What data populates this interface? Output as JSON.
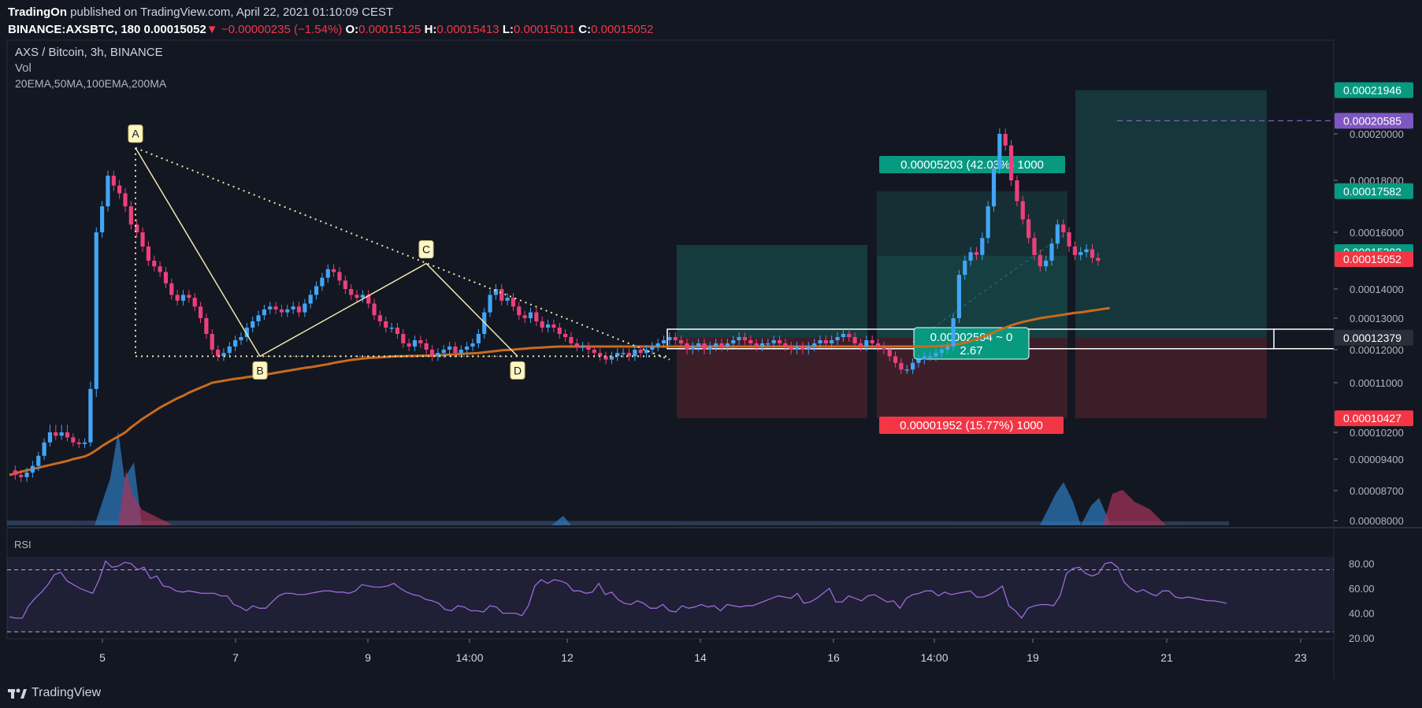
{
  "header": {
    "publisher": "TradingOn",
    "published_text": "published on TradingView.com, April 22, 2021 01:10:09 CEST",
    "symbol_text": "BINANCE:AXSBTC, 180",
    "last_price": "0.00015052",
    "change_text": "−0.00000235 (−1.54%)",
    "o_label": "O:",
    "o_value": "0.00015125",
    "h_label": "H:",
    "h_value": "0.00015413",
    "l_label": "L:",
    "l_value": "0.00015011",
    "c_label": "C:",
    "c_value": "0.00015052",
    "down_arrow": "▼"
  },
  "legend": {
    "title": "AXS / Bitcoin, 3h, BINANCE",
    "vol": "Vol",
    "indicators": "20EMA,50MA,100EMA,200MA"
  },
  "rsi": {
    "label": "RSI",
    "levels": [
      {
        "label": "80.00",
        "value": 80
      },
      {
        "label": "60.00",
        "value": 60
      },
      {
        "label": "40.00",
        "value": 40
      },
      {
        "label": "20.00",
        "value": 20
      }
    ],
    "upper_band": 75,
    "lower_band": 25,
    "ylim": [
      15,
      88
    ],
    "values": [
      37,
      36,
      36,
      46,
      52,
      57,
      63,
      71,
      73,
      66,
      63,
      60,
      58,
      56,
      67,
      82,
      77,
      78,
      81,
      80,
      75,
      77,
      68,
      70,
      62,
      61,
      58,
      57,
      58,
      57,
      56,
      56,
      56,
      54,
      54,
      47,
      45,
      42,
      46,
      44,
      44,
      49,
      54,
      56,
      56,
      55,
      55,
      56,
      57,
      58,
      58,
      57,
      57,
      56,
      58,
      63,
      62,
      61,
      61,
      62,
      64,
      60,
      57,
      55,
      54,
      51,
      50,
      48,
      43,
      42,
      46,
      45,
      42,
      42,
      41,
      46,
      45,
      40,
      40,
      40,
      38,
      46,
      62,
      67,
      64,
      67,
      66,
      64,
      58,
      58,
      56,
      57,
      64,
      55,
      57,
      51,
      48,
      47,
      50,
      48,
      44,
      44,
      47,
      42,
      41,
      46,
      44,
      45,
      47,
      45,
      46,
      42,
      47,
      46,
      45,
      46,
      46,
      48,
      50,
      52,
      54,
      53,
      52,
      56,
      48,
      49,
      52,
      56,
      60,
      49,
      49,
      54,
      52,
      50,
      54,
      55,
      52,
      49,
      50,
      44,
      52,
      55,
      56,
      58,
      58,
      54,
      57,
      55,
      56,
      57,
      58,
      53,
      53,
      55,
      58,
      62,
      46,
      42,
      36,
      44,
      46,
      47,
      47,
      46,
      54,
      72,
      76,
      77,
      72,
      70,
      72,
      80,
      81,
      77,
      65,
      60,
      57,
      59,
      56,
      54,
      58,
      58,
      53,
      52,
      53,
      52,
      51,
      50,
      50,
      49,
      48
    ]
  },
  "axes": {
    "x_ticks": [
      "5",
      "7",
      "9",
      "14:00",
      "12",
      "14",
      "16",
      "14:00",
      "19",
      "21",
      "23"
    ],
    "y_ticks": [
      "0.00020000",
      "0.00018000",
      "0.00016000",
      "0.00014000",
      "0.00013000",
      "0.00012000",
      "0.00011000",
      "0.00010200",
      "0.00009400",
      "0.00008700",
      "0.00008000"
    ],
    "y_tick_values": [
      0.0002,
      0.00018,
      0.00016,
      0.00014,
      0.00013,
      0.00012,
      0.00011,
      0.000102,
      9.4e-05,
      8.7e-05,
      8e-05
    ],
    "price_labels": [
      {
        "text": "0.00021946",
        "value": 0.00021946,
        "color": "#089981"
      },
      {
        "text": "0.00020585",
        "value": 0.00020585,
        "color": "#7e57c2"
      },
      {
        "text": "0.00017582",
        "value": 0.00017582,
        "color": "#089981"
      },
      {
        "text": "0.00015303",
        "value": 0.00015303,
        "color": "#089981"
      },
      {
        "text": "0.00015052",
        "value": 0.00015052,
        "color": "#f23645"
      },
      {
        "text": "0.00012379",
        "value": 0.00012379,
        "color": "#2a2e39"
      },
      {
        "text": "0.00010427",
        "value": 0.00010427,
        "color": "#f23645"
      }
    ]
  },
  "pattern": {
    "points": [
      {
        "label": "A",
        "value": 0.000194
      },
      {
        "label": "B",
        "value": 0.000118
      },
      {
        "label": "C",
        "value": 0.000149
      },
      {
        "label": "D",
        "value": 0.000118
      }
    ]
  },
  "positions": {
    "profit_label": "0.00005203 (42.03%) 1000",
    "loss_label": "0.00001952 (15.77%) 1000",
    "measure_label_1": "0.00002594 ~ 0",
    "measure_label_2": "2.67",
    "entry": 0.00012379,
    "stop": 0.00010427,
    "target_1": 0.00017582,
    "target_2": 0.00021946,
    "high_marker": 0.00020585
  },
  "chart_data": {
    "type": "candlestick",
    "title": "AXS / Bitcoin, 3h, BINANCE",
    "ylim": [
      8e-05,
      0.00022
    ],
    "ma_100ema": [
      9.05e-05,
      9.08e-05,
      9.12e-05,
      9.15e-05,
      9.18e-05,
      9.21e-05,
      9.24e-05,
      9.27e-05,
      9.3e-05,
      9.33e-05,
      9.36e-05,
      9.4e-05,
      9.44e-05,
      9.48e-05,
      9.56e-05,
      9.67e-05,
      9.79e-05,
      9.9e-05,
      0.0001,
      0.000101,
      0.000102,
      0.0001028,
      0.0001035,
      0.0001042,
      0.0001048,
      0.0001054,
      0.000106,
      0.0001065,
      0.000107,
      0.0001075,
      0.0001079,
      0.0001084,
      0.0001088,
      0.0001092,
      0.0001096,
      0.00011,
      0.0001103,
      0.0001106,
      0.0001109,
      0.0001112,
      0.0001114,
      0.0001117,
      0.0001119,
      0.0001122,
      0.0001124,
      0.0001127,
      0.000113,
      0.0001133,
      0.0001136,
      0.0001139,
      0.0001142,
      0.0001145,
      0.0001147,
      0.000115,
      0.0001153,
      0.0001156,
      0.000116,
      0.0001163,
      0.0001166,
      0.0001169,
      0.0001171,
      0.0001173,
      0.0001175,
      0.0001176,
      0.0001177,
      0.0001178,
      0.0001179,
      0.000118,
      0.000118,
      0.0001181,
      0.0001181,
      0.0001182,
      0.0001182,
      0.0001183,
      0.0001183,
      0.0001184,
      0.0001185,
      0.0001186,
      0.0001187,
      0.0001188,
      0.0001189,
      0.000119,
      0.0001192,
      0.0001194,
      0.0001196,
      0.0001198,
      0.0001199,
      0.00012,
      0.0001202,
      0.0001203,
      0.0001205,
      0.0001206,
      0.0001207,
      0.0001208,
      0.0001209,
      0.000121,
      0.000121,
      0.000121,
      0.000121,
      0.000121,
      0.000121,
      0.000121,
      0.000121,
      0.000121,
      0.000121,
      0.000121,
      0.000121,
      0.000121,
      0.000121,
      0.000121,
      0.000121,
      0.000121,
      0.000121,
      0.000121,
      0.000121,
      0.000121,
      0.000121,
      0.000121,
      0.000121,
      0.000121,
      0.000121,
      0.000121,
      0.000121,
      0.000121,
      0.000121,
      0.000121,
      0.000121,
      0.000121,
      0.000121,
      0.000121,
      0.000121,
      0.000121,
      0.000121,
      0.000121,
      0.000121,
      0.000121,
      0.000121,
      0.000121,
      0.000121,
      0.000121,
      0.000121,
      0.000121,
      0.000121,
      0.000121,
      0.000121,
      0.000121,
      0.000121,
      0.000121,
      0.000121,
      0.000121,
      0.000121,
      0.000121,
      0.000121,
      0.000121,
      0.000121,
      0.000121,
      0.000121,
      0.000121,
      0.000121,
      0.000121,
      0.0001211,
      0.0001212,
      0.0001213,
      0.0001215,
      0.0001218,
      0.0001222,
      0.0001227,
      0.0001233,
      0.000124,
      0.0001247,
      0.0001255,
      0.0001263,
      0.000127,
      0.0001277,
      0.0001283,
      0.0001288,
      0.0001292,
      0.0001296,
      0.00013,
      0.0001303,
      0.0001306,
      0.0001309,
      0.0001312,
      0.0001315,
      0.0001318,
      0.000132,
      0.0001323,
      0.0001326,
      0.0001329,
      0.0001332,
      0.0001335
    ]
  }
}
